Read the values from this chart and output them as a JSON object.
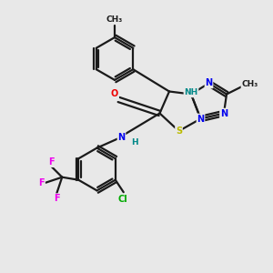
{
  "bg_color": "#e8e8e8",
  "bond_color": "#1a1a1a",
  "bond_width": 1.6,
  "atom_colors": {
    "N": "#0000ee",
    "S": "#bbbb00",
    "O": "#ee0000",
    "Cl": "#00aa00",
    "F": "#ee00ee",
    "NH": "#008888",
    "C": "#1a1a1a",
    "H": "#008888"
  },
  "font_size": 7.5
}
